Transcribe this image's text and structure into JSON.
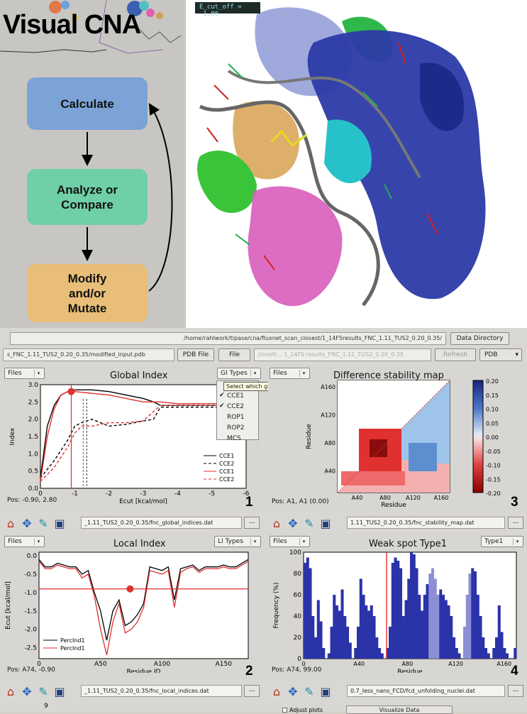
{
  "app": {
    "title": "Visual CNA"
  },
  "workflow": {
    "steps": [
      {
        "label": "Calculate",
        "color": "#7ba3d6"
      },
      {
        "label": "Analyze or\nCompare",
        "color": "#6fcfa6"
      },
      {
        "label": "Modify\nand/or\nMutate",
        "color": "#e8be78"
      }
    ]
  },
  "viewer": {
    "cutoff_label": "E_cut_off = -1.00"
  },
  "toolbar": {
    "results_path": "/home/rahlwork/tipase/cna/fluxnet_scan_closest/1_14F5results_FNC_1.11_TUS2_0.20_0.35/",
    "data_directory_button": "Data Directory",
    "pdb_path": "s_FNC_1.11_TUS2_0.20_0.35/modified_input.pdb",
    "pdb_file_button": "PDB File",
    "file_button": "File",
    "refresh_button": "Refresh",
    "pdb_button": "PDB",
    "faded_path": "/rosett... 1_14FS results_FNC_1.11_TUS2_0.20_0.35"
  },
  "global_panel": {
    "files_label": "Files",
    "title": "Global Index",
    "gi_types_label": "GI Types",
    "ylabel": "Index",
    "xlabel": "Ecut [kcal/mol]",
    "pos": "Pos: -0.90, 2.80",
    "number": "1",
    "path": "_1.11_TUS2_0.20_0.35/fnc_global_indices.dat",
    "popup_items": [
      {
        "label": "CCE1",
        "checked": true
      },
      {
        "label": "CCE2",
        "checked": true
      },
      {
        "label": "ROP1",
        "checked": false
      },
      {
        "label": "ROP2",
        "checked": false
      },
      {
        "label": "MCS",
        "checked": false
      }
    ],
    "tooltip": "Select which global indices to display"
  },
  "diff_panel": {
    "files_label": "Files",
    "title": "Difference stability map",
    "ylabel": "Residue",
    "xlabel": "Residue",
    "pos": "Pos: A1, A1 (0.00)",
    "number": "3",
    "path": "1.11_TUS2_0.20_0.35/fnc_stability_map.dat"
  },
  "local_panel": {
    "files_label": "Files",
    "title": "Local Index",
    "li_types_label": "LI Types",
    "ylabel": "Ecut [kcal/mol]",
    "xlabel": "Residue ID",
    "pos": "Pos: A74, -0.90",
    "number": "2",
    "path": "_1.11_TUS2_0.20_0.35/fnc_local_indices.dat"
  },
  "weak_panel": {
    "files_label": "Files",
    "title": "Weak spot Type1",
    "type_label": "Type1",
    "ylabel": "Frequency (%)",
    "xlabel": "Residue",
    "pos": "Pos: A74, 99.00",
    "number": "4",
    "path": "0.7_less_nans_FCD/fcd_unfolding_nuclei.dat"
  },
  "bottom": {
    "page_number": "9",
    "checkbox_label": "Adjust plots",
    "visualize_button": "Visualize Data"
  },
  "chart_data": [
    {
      "type": "line",
      "title": "Global Index",
      "xlabel": "Ecut [kcal/mol]",
      "ylabel": "Index",
      "xlim": [
        0,
        -6
      ],
      "ylim": [
        0,
        3.0
      ],
      "x_ticks": [
        "0",
        "-1",
        "-2",
        "-3",
        "-4",
        "-5",
        "-6"
      ],
      "y_ticks": [
        "0.0",
        "0.5",
        "1.0",
        "1.5",
        "2.0",
        "2.5",
        "3.0"
      ],
      "legend": "bottom-right",
      "series": [
        {
          "name": "CCE1",
          "color": "#000000",
          "dash": false,
          "x": [
            0,
            -0.2,
            -0.4,
            -0.6,
            -0.8,
            -1.0,
            -1.5,
            -2.0,
            -2.5,
            -3.0,
            -3.3,
            -3.5,
            -4.0,
            -5.0,
            -6.0
          ],
          "y": [
            0.3,
            1.8,
            2.4,
            2.7,
            2.8,
            2.85,
            2.85,
            2.8,
            2.7,
            2.6,
            2.5,
            2.4,
            2.4,
            2.4,
            2.4
          ]
        },
        {
          "name": "CCE2",
          "color": "#000000",
          "dash": true,
          "x": [
            0,
            -0.4,
            -0.8,
            -1.0,
            -1.2,
            -1.5,
            -2.0,
            -2.5,
            -3.0,
            -3.3,
            -3.5,
            -4.0,
            -5.0,
            -6.0
          ],
          "y": [
            0.3,
            0.8,
            1.4,
            1.8,
            1.9,
            2.0,
            1.8,
            1.85,
            1.95,
            2.0,
            2.35,
            2.35,
            2.35,
            2.35
          ]
        },
        {
          "name": "CCE1",
          "color": "#e03030",
          "dash": false,
          "x": [
            0,
            -0.2,
            -0.4,
            -0.6,
            -0.8,
            -1.0,
            -1.5,
            -2.0,
            -2.5,
            -3.0,
            -3.5,
            -4.0,
            -5.0,
            -6.0
          ],
          "y": [
            0.2,
            1.5,
            2.3,
            2.7,
            2.8,
            2.8,
            2.75,
            2.7,
            2.6,
            2.5,
            2.5,
            2.45,
            2.45,
            2.45
          ]
        },
        {
          "name": "CCE2",
          "color": "#e03030",
          "dash": true,
          "x": [
            0,
            -0.4,
            -0.8,
            -1.0,
            -1.2,
            -1.5,
            -2.0,
            -2.5,
            -3.0,
            -3.5,
            -4.0,
            -5.0,
            -6.0
          ],
          "y": [
            0.2,
            0.6,
            1.2,
            1.6,
            1.8,
            1.8,
            1.9,
            1.9,
            1.95,
            2.4,
            2.4,
            2.4,
            2.4
          ]
        }
      ]
    },
    {
      "type": "heatmap",
      "title": "Difference stability map",
      "xlabel": "Residue",
      "ylabel": "Residue",
      "x_ticks": [
        "A40",
        "A80",
        "A120",
        "A160"
      ],
      "y_ticks": [
        "A40",
        "A80",
        "A120",
        "A160"
      ],
      "colorbar_ticks": [
        "0.20",
        "0.15",
        "0.10",
        "0.05",
        "0.00",
        "-0.05",
        "-0.10",
        "-0.15",
        "-0.20"
      ],
      "clim": [
        -0.2,
        0.2
      ]
    },
    {
      "type": "line",
      "title": "Local Index",
      "xlabel": "Residue ID",
      "ylabel": "Ecut [kcal/mol]",
      "xlim": [
        0,
        170
      ],
      "ylim": [
        -2.8,
        0.1
      ],
      "x_ticks": [
        "0",
        "A50",
        "A100",
        "A150"
      ],
      "y_ticks": [
        "0.0",
        "-0.5",
        "-1.0",
        "-1.5",
        "-2.0",
        "-2.5"
      ],
      "legend": "bottom-left",
      "threshold": -0.9,
      "series": [
        {
          "name": "PercInd1",
          "color": "#000000",
          "x": [
            0,
            5,
            10,
            15,
            20,
            25,
            30,
            35,
            40,
            45,
            50,
            55,
            60,
            65,
            70,
            75,
            80,
            85,
            90,
            95,
            100,
            105,
            110,
            115,
            120,
            125,
            130,
            135,
            140,
            145,
            150,
            155,
            160,
            165,
            170
          ],
          "y": [
            -0.1,
            -0.3,
            -0.3,
            -0.2,
            -0.25,
            -0.3,
            -0.3,
            -0.5,
            -0.4,
            -1.0,
            -1.5,
            -2.3,
            -1.5,
            -1.2,
            -1.9,
            -1.8,
            -1.6,
            -1.3,
            -0.3,
            -0.35,
            -0.4,
            -0.3,
            -1.2,
            -0.35,
            -0.3,
            -0.25,
            -0.4,
            -0.3,
            -0.3,
            -0.3,
            -0.25,
            -0.3,
            -0.3,
            -0.2,
            -0.1
          ]
        },
        {
          "name": "PercInd1",
          "color": "#e03030",
          "x": [
            0,
            5,
            10,
            15,
            20,
            25,
            30,
            35,
            40,
            45,
            50,
            55,
            60,
            65,
            70,
            75,
            80,
            85,
            90,
            95,
            100,
            105,
            110,
            115,
            120,
            125,
            130,
            135,
            140,
            145,
            150,
            155,
            160,
            165,
            170
          ],
          "y": [
            -0.15,
            -0.35,
            -0.35,
            -0.25,
            -0.3,
            -0.35,
            -0.35,
            -0.6,
            -0.5,
            -1.1,
            -2.0,
            -2.7,
            -1.8,
            -1.3,
            -2.1,
            -2.0,
            -1.8,
            -1.4,
            -0.4,
            -0.45,
            -0.5,
            -0.4,
            -1.4,
            -0.45,
            -0.35,
            -0.3,
            -0.45,
            -0.35,
            -0.35,
            -0.35,
            -0.3,
            -0.35,
            -0.35,
            -0.25,
            -0.15
          ]
        }
      ]
    },
    {
      "type": "bar",
      "title": "Weak spot Type1",
      "xlabel": "Residue",
      "ylabel": "Frequency (%)",
      "ylim": [
        0,
        100
      ],
      "x_ticks": [
        "0",
        "A40",
        "A80",
        "A120",
        "A160"
      ],
      "y_ticks": [
        "0",
        "20",
        "40",
        "60",
        "80",
        "100"
      ],
      "values": [
        90,
        95,
        85,
        40,
        20,
        55,
        35,
        10,
        0,
        5,
        30,
        60,
        50,
        45,
        65,
        40,
        30,
        15,
        0,
        10,
        30,
        75,
        60,
        50,
        45,
        50,
        40,
        20,
        10,
        5,
        0,
        10,
        30,
        90,
        95,
        92,
        85,
        40,
        55,
        75,
        100,
        98,
        85,
        60,
        45,
        60,
        70,
        80,
        85,
        75,
        60,
        65,
        60,
        55,
        50,
        40,
        20,
        10,
        5,
        0,
        30,
        60,
        80,
        85,
        82,
        60,
        40,
        20,
        10,
        5,
        0,
        10,
        20,
        50,
        25,
        10,
        5,
        0,
        0,
        10
      ]
    }
  ]
}
